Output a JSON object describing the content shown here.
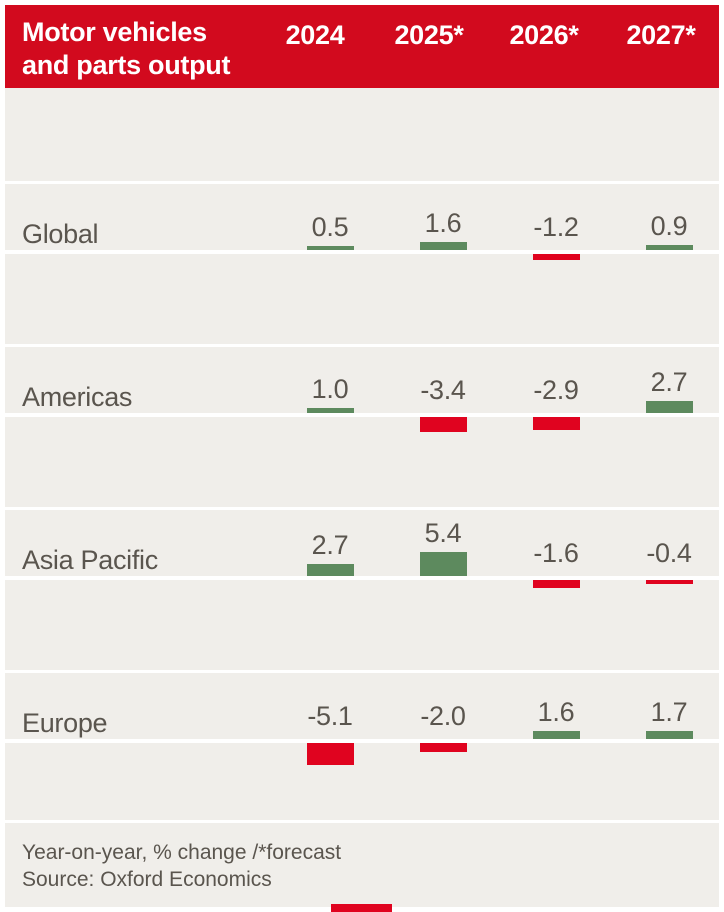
{
  "header": {
    "title_line1": "Motor vehicles",
    "title_line2": "and parts output"
  },
  "chart_data": {
    "type": "bar",
    "title": "Motor vehicles and parts output",
    "categories": [
      "2024",
      "2025*",
      "2026*",
      "2027*"
    ],
    "series": [
      {
        "name": "Global",
        "values": [
          0.5,
          1.6,
          -1.2,
          0.9
        ]
      },
      {
        "name": "Americas",
        "values": [
          1.0,
          -3.4,
          -2.9,
          2.7
        ]
      },
      {
        "name": "Asia Pacific",
        "values": [
          2.7,
          5.4,
          -1.6,
          -0.4
        ]
      },
      {
        "name": "Europe",
        "values": [
          -5.1,
          -2.0,
          1.6,
          1.7
        ]
      }
    ],
    "ylabel": "Year-on-year, % change",
    "baseline": 0,
    "value_labels": "one_decimal",
    "grid": "off",
    "legend": "none",
    "positive_color": "#5d8a5e",
    "negative_color": "#e0031f"
  },
  "footer": {
    "note": "Year-on-year, % change /*forecast",
    "source": "Source: Oxford Economics"
  },
  "colors": {
    "page_bg": "#ffffff",
    "canvas_bg": "#f0eeea",
    "header_bg": "#d20a1e",
    "header_text": "#ffffff",
    "text": "#5a554e",
    "positive_bar": "#5d8a5e",
    "negative_bar": "#e0031f",
    "line": "#ffffff",
    "bottom_mark": "#e0031f"
  }
}
